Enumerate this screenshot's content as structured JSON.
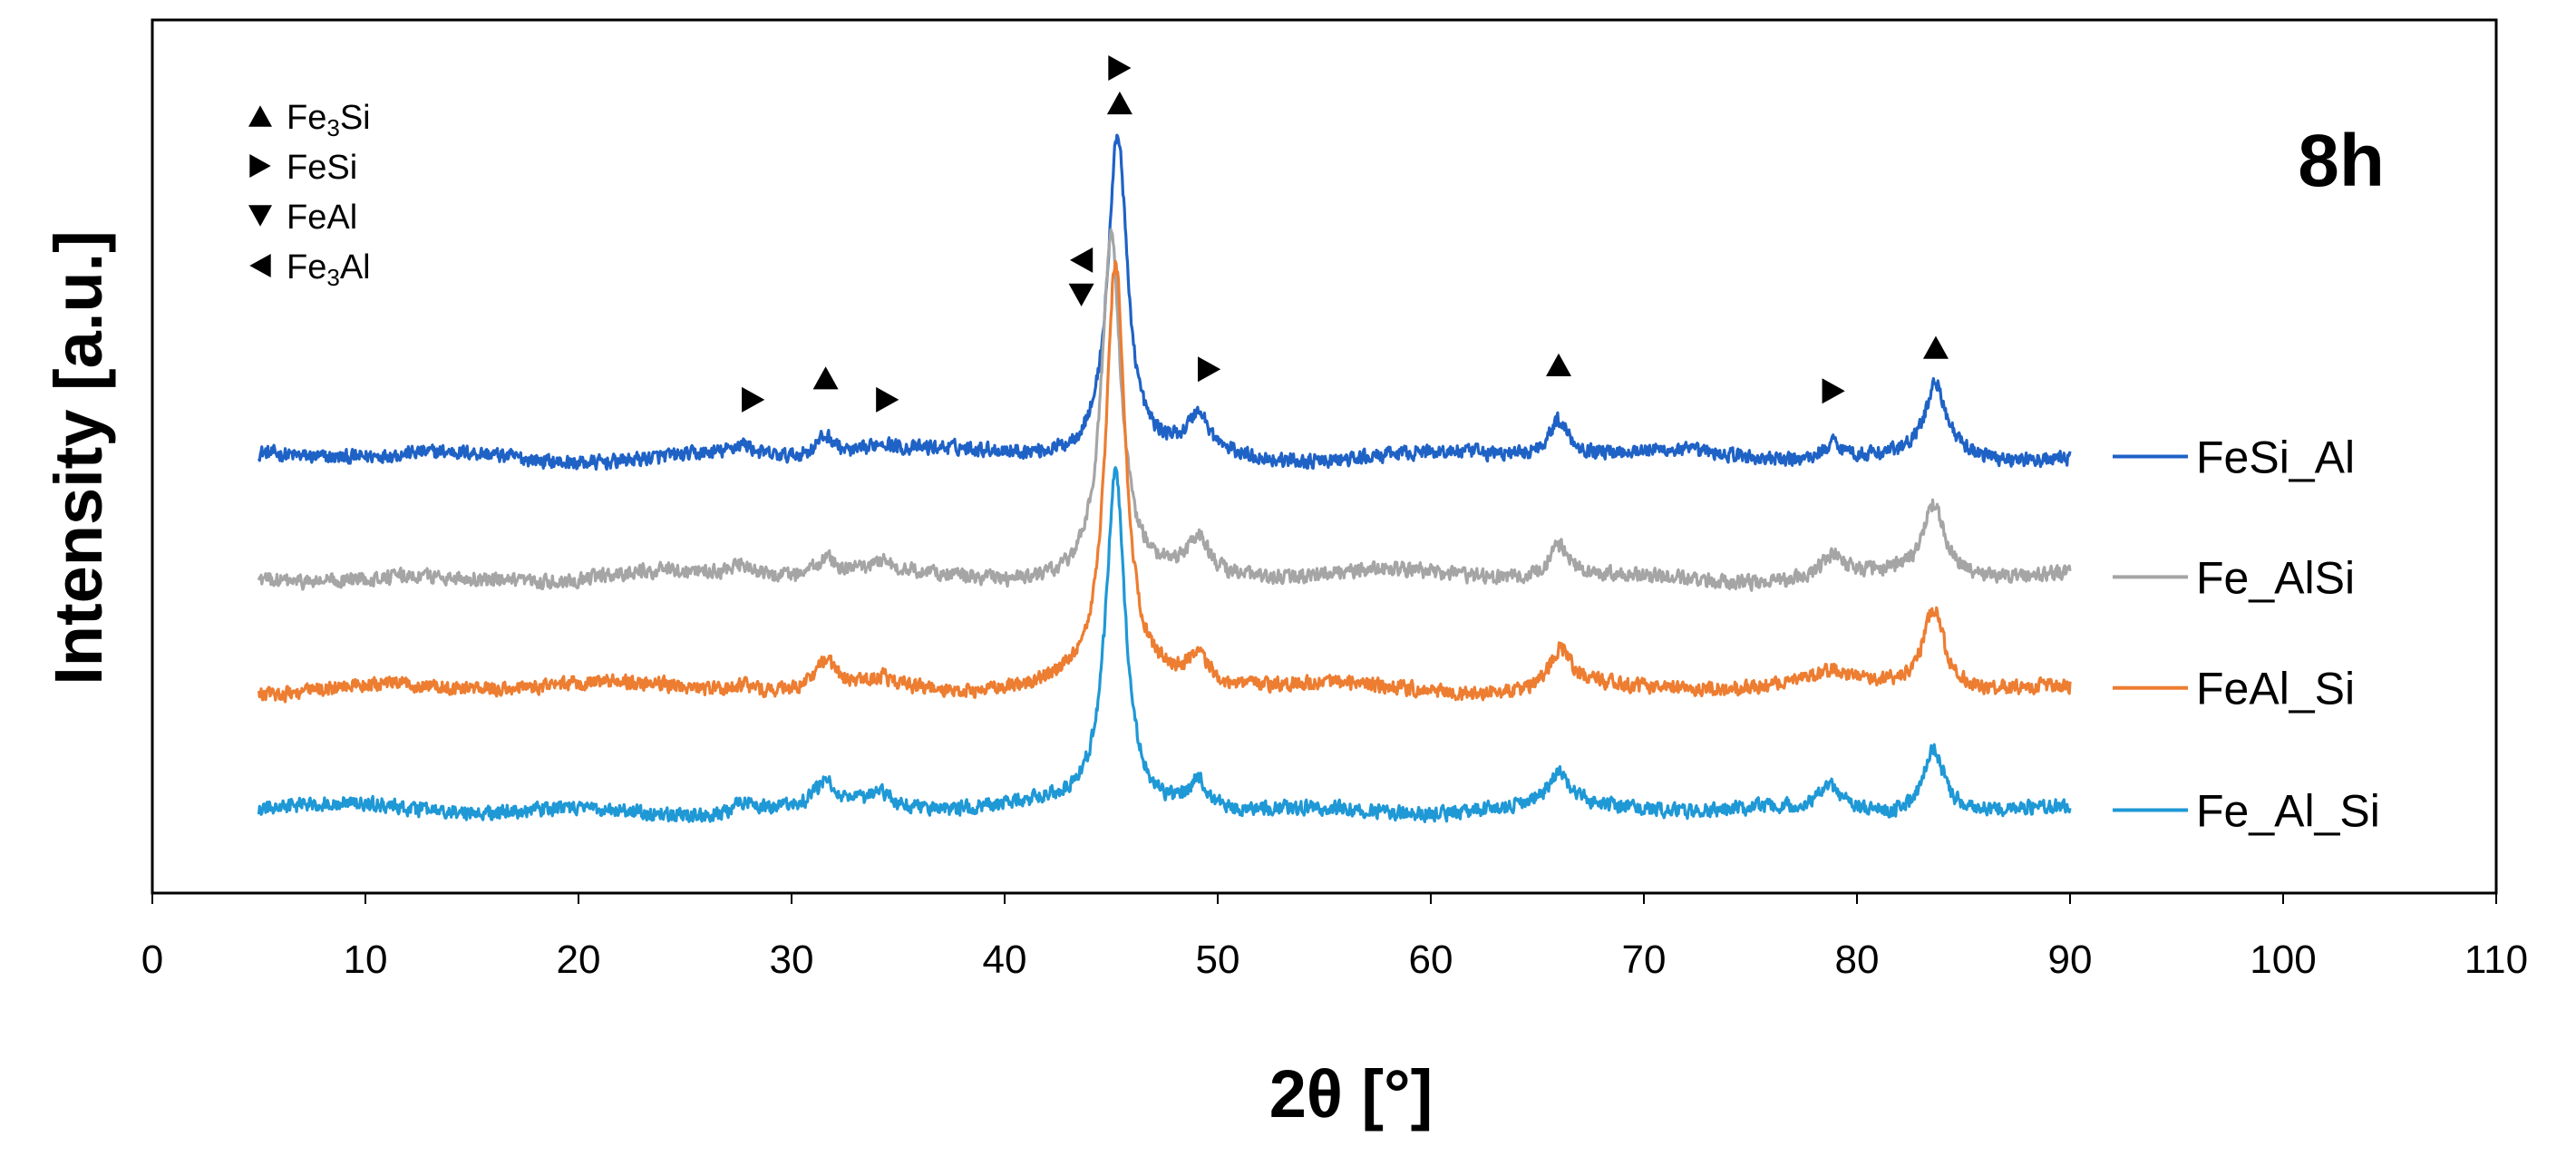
{
  "chart_data": {
    "type": "line",
    "title": "8h",
    "xlabel": "2θ [°]",
    "ylabel": "Intensity [a.u.]",
    "xlim": [
      0,
      110
    ],
    "x_ticks": [
      0,
      10,
      20,
      30,
      40,
      50,
      60,
      70,
      80,
      90,
      100,
      110
    ],
    "x_tick_labels": [
      "0",
      "10",
      "20",
      "30",
      "40",
      "50",
      "60",
      "70",
      "80",
      "90",
      "100",
      "110"
    ],
    "ylim": [
      0,
      100
    ],
    "y_ticks_shown": false,
    "x_range_of_data": [
      5,
      90
    ],
    "series": [
      {
        "name": "FeSi_Al",
        "color": "#1f62c6",
        "baseline": 50.0,
        "peaks": [
          [
            27.7,
            1.3
          ],
          [
            31.6,
            2.5
          ],
          [
            34.2,
            1.2
          ],
          [
            45.3,
            37.0
          ],
          [
            49.1,
            4.3
          ],
          [
            66.0,
            4.2
          ],
          [
            78.9,
            2.0
          ],
          [
            83.7,
            8.3
          ]
        ]
      },
      {
        "name": "Fe_AlSi",
        "color": "#a5a5a5",
        "baseline": 36.2,
        "peaks": [
          [
            27.7,
            1.1
          ],
          [
            31.6,
            2.0
          ],
          [
            34.2,
            1.3
          ],
          [
            45.0,
            39.0
          ],
          [
            49.1,
            4.0
          ],
          [
            66.0,
            3.7
          ],
          [
            78.8,
            2.4
          ],
          [
            83.6,
            8.0
          ]
        ]
      },
      {
        "name": "FeAl_Si",
        "color": "#ed7d31",
        "baseline": 23.5,
        "peaks": [
          [
            27.7,
            0.8
          ],
          [
            31.6,
            3.0
          ],
          [
            34.2,
            1.0
          ],
          [
            45.2,
            48.0
          ],
          [
            49.1,
            3.0
          ],
          [
            66.1,
            4.6
          ],
          [
            78.8,
            1.2
          ],
          [
            83.6,
            9.3
          ]
        ]
      },
      {
        "name": "Fe_Al_Si",
        "color": "#1f98d6",
        "baseline": 9.5,
        "peaks": [
          [
            27.7,
            1.4
          ],
          [
            31.6,
            2.7
          ],
          [
            34.2,
            1.6
          ],
          [
            45.2,
            38.5
          ],
          [
            49.1,
            3.5
          ],
          [
            66.0,
            3.5
          ],
          [
            78.8,
            2.4
          ],
          [
            83.6,
            7.8
          ]
        ]
      }
    ],
    "phase_legend": [
      {
        "marker": "up-triangle",
        "label_main": "Fe",
        "label_sub": "3",
        "label_tail": "Si"
      },
      {
        "marker": "right-triangle",
        "label_main": "FeSi",
        "label_sub": "",
        "label_tail": ""
      },
      {
        "marker": "down-triangle",
        "label_main": "FeAl",
        "label_sub": "",
        "label_tail": ""
      },
      {
        "marker": "left-triangle",
        "label_main": "Fe",
        "label_sub": "3",
        "label_tail": "Al"
      }
    ],
    "phase_annotations": [
      {
        "x": 28.2,
        "y": 56.5,
        "marker": "right-triangle",
        "phase": "FeSi"
      },
      {
        "x": 31.6,
        "y": 59.0,
        "marker": "up-triangle",
        "phase": "Fe3Si"
      },
      {
        "x": 34.5,
        "y": 56.5,
        "marker": "right-triangle",
        "phase": "FeSi"
      },
      {
        "x": 43.6,
        "y": 72.5,
        "marker": "left-triangle",
        "phase": "Fe3Al"
      },
      {
        "x": 43.6,
        "y": 68.5,
        "marker": "down-triangle",
        "phase": "FeAl"
      },
      {
        "x": 45.4,
        "y": 90.5,
        "marker": "up-triangle",
        "phase": "Fe3Si"
      },
      {
        "x": 45.4,
        "y": 94.5,
        "marker": "right-triangle",
        "phase": "FeSi"
      },
      {
        "x": 49.6,
        "y": 60.0,
        "marker": "right-triangle",
        "phase": "FeSi"
      },
      {
        "x": 66.0,
        "y": 60.5,
        "marker": "up-triangle",
        "phase": "Fe3Si"
      },
      {
        "x": 78.9,
        "y": 57.5,
        "marker": "right-triangle",
        "phase": "FeSi"
      },
      {
        "x": 83.7,
        "y": 62.5,
        "marker": "up-triangle",
        "phase": "Fe3Si"
      }
    ]
  }
}
